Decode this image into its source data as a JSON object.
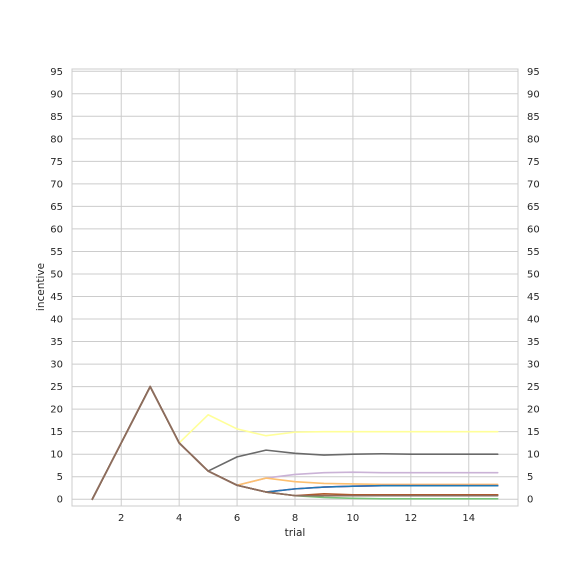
{
  "chart_data": {
    "type": "line",
    "title": "",
    "xlabel": "trial",
    "ylabel": "incentive",
    "xlim": [
      0.3,
      15.7
    ],
    "ylim": [
      -1.5,
      95.5
    ],
    "x_ticks": [
      "2",
      "4",
      "6",
      "8",
      "10",
      "12",
      "14"
    ],
    "y_ticks": [
      "0",
      "5",
      "10",
      "15",
      "20",
      "25",
      "30",
      "35",
      "40",
      "45",
      "50",
      "55",
      "60",
      "65",
      "70",
      "75",
      "80",
      "85",
      "90",
      "95"
    ],
    "grid": true,
    "legend": "none",
    "x": [
      1,
      2,
      3,
      4,
      5,
      6,
      7,
      8,
      9,
      10,
      11,
      12,
      13,
      14,
      15
    ],
    "series": [
      {
        "color": "#ffff99",
        "values": [
          0,
          12.5,
          25,
          12.5,
          18.75,
          15.6,
          14.1,
          14.9,
          15.0,
          15.0,
          15.0,
          15.0,
          15.0,
          15.0,
          15.0
        ]
      },
      {
        "color": "#6a6a6a",
        "values": [
          0,
          12.5,
          25,
          12.5,
          6.25,
          9.4,
          10.9,
          10.2,
          9.8,
          10.0,
          10.1,
          10.0,
          10.0,
          10.0,
          10.0
        ]
      },
      {
        "color": "#cab2d6",
        "values": [
          0,
          12.5,
          25,
          12.5,
          6.25,
          3.1,
          4.7,
          5.5,
          5.9,
          6.0,
          5.9,
          5.9,
          5.9,
          5.9,
          5.9
        ]
      },
      {
        "color": "#fdbf6f",
        "values": [
          0,
          12.5,
          25,
          12.5,
          6.25,
          3.1,
          4.7,
          3.9,
          3.5,
          3.4,
          3.3,
          3.3,
          3.3,
          3.3,
          3.3
        ]
      },
      {
        "color": "#e7298a",
        "values": [
          0,
          12.5,
          25,
          12.5,
          6.25,
          3.1,
          1.6,
          2.3,
          2.7,
          2.9,
          3.0,
          3.0,
          3.0,
          3.0,
          3.0
        ]
      },
      {
        "color": "#1f78b4",
        "values": [
          0,
          12.5,
          25,
          12.5,
          6.25,
          3.1,
          1.6,
          2.3,
          2.7,
          2.9,
          3.0,
          3.0,
          3.0,
          3.0,
          3.0
        ]
      },
      {
        "color": "#77c47a",
        "values": [
          0,
          12.5,
          25,
          12.5,
          6.25,
          3.1,
          1.6,
          0.8,
          0.4,
          0.2,
          0.1,
          0.1,
          0.1,
          0.1,
          0.1
        ]
      },
      {
        "color": "#b15928",
        "values": [
          0,
          12.5,
          25,
          12.5,
          6.25,
          3.1,
          1.6,
          0.8,
          1.2,
          1.0,
          1.0,
          1.0,
          1.0,
          1.0,
          1.0
        ]
      },
      {
        "color": "#8c6d5f",
        "values": [
          0,
          12.5,
          25,
          12.5,
          6.25,
          3.1,
          1.6,
          0.8,
          0.8,
          0.8,
          0.8,
          0.8,
          0.8,
          0.8,
          0.8
        ]
      }
    ]
  }
}
